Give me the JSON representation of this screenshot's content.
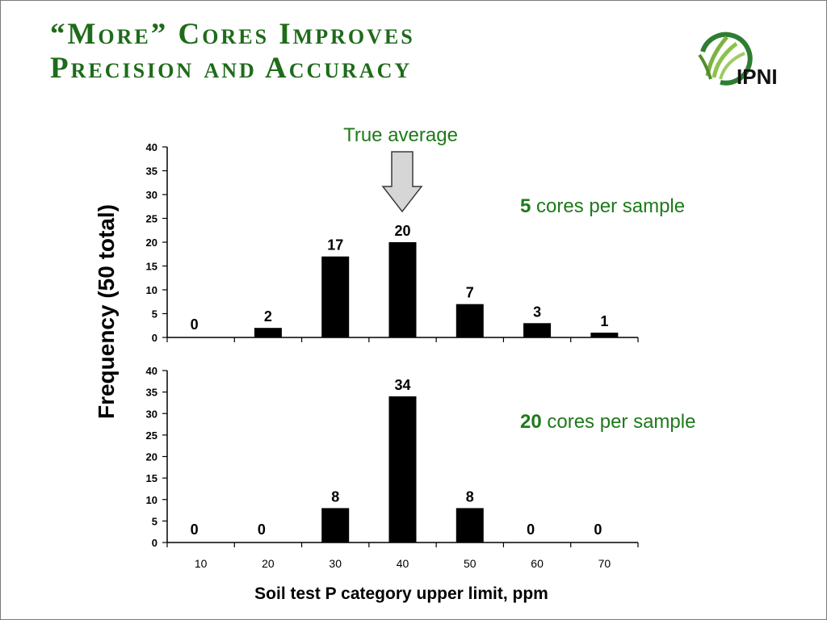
{
  "title": {
    "line1": "“More” Cores Improves",
    "line2": "Precision and Accuracy"
  },
  "logo": {
    "text": "IPNI"
  },
  "annotation": {
    "true_average": "True average"
  },
  "colors": {
    "accent_green": "#1e6b1a",
    "bar": "#000000"
  },
  "chart_data": {
    "type": "bar",
    "ylabel": "Frequency (50 total)",
    "xlabel": "Soil test P category upper limit, ppm",
    "categories": [
      "10",
      "20",
      "30",
      "40",
      "50",
      "60",
      "70"
    ],
    "ylim": [
      0,
      40
    ],
    "yticks": [
      0,
      5,
      10,
      15,
      20,
      25,
      30,
      35,
      40
    ],
    "panels": [
      {
        "label_num": "5",
        "label_text": " cores per sample",
        "values": [
          0,
          2,
          17,
          20,
          7,
          3,
          1
        ]
      },
      {
        "label_num": "20",
        "label_text": " cores per sample",
        "values": [
          0,
          0,
          8,
          34,
          8,
          0,
          0
        ]
      }
    ]
  }
}
